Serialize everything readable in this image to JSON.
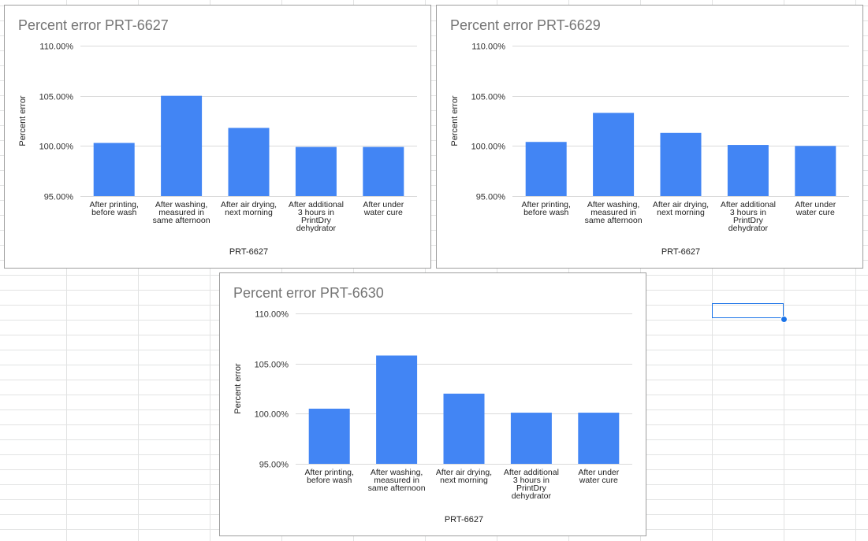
{
  "colors": {
    "bar": "#4285f4",
    "title": "#757575",
    "grid": "#dadada",
    "selection": "#1a73e8"
  },
  "chart_data": [
    {
      "type": "bar",
      "title": "Percent error PRT-6627",
      "xlabel": "PRT-6627",
      "ylabel": "Percent error",
      "ylim": [
        0.95,
        1.1
      ],
      "yticks": [
        "95.00%",
        "100.00%",
        "105.00%",
        "110.00%"
      ],
      "categories": [
        [
          "After printing,",
          "before wash"
        ],
        [
          "After washing,",
          "measured in",
          "same afternoon"
        ],
        [
          "After air drying,",
          "next morning"
        ],
        [
          "After additional",
          "3 hours in",
          "PrintDry",
          "dehydrator"
        ],
        [
          "After under",
          "water cure"
        ]
      ],
      "values": [
        1.003,
        1.05,
        1.018,
        0.999,
        0.999
      ],
      "grid": true
    },
    {
      "type": "bar",
      "title": "Percent error PRT-6629",
      "xlabel": "PRT-6627",
      "ylabel": "Percent error",
      "ylim": [
        0.95,
        1.1
      ],
      "yticks": [
        "95.00%",
        "100.00%",
        "105.00%",
        "110.00%"
      ],
      "categories": [
        [
          "After printing,",
          "before wash"
        ],
        [
          "After washing,",
          "measured in",
          "same afternoon"
        ],
        [
          "After air drying,",
          "next morning"
        ],
        [
          "After additional",
          "3 hours in",
          "PrintDry",
          "dehydrator"
        ],
        [
          "After under",
          "water cure"
        ]
      ],
      "values": [
        1.004,
        1.033,
        1.013,
        1.001,
        1.0
      ],
      "grid": true
    },
    {
      "type": "bar",
      "title": "Percent error PRT-6630",
      "xlabel": "PRT-6627",
      "ylabel": "Percent error",
      "ylim": [
        0.95,
        1.1
      ],
      "yticks": [
        "95.00%",
        "100.00%",
        "105.00%",
        "110.00%"
      ],
      "categories": [
        [
          "After printing,",
          "before wash"
        ],
        [
          "After washing,",
          "measured in",
          "same afternoon"
        ],
        [
          "After air drying,",
          "next morning"
        ],
        [
          "After additional",
          "3 hours in",
          "PrintDry",
          "dehydrator"
        ],
        [
          "After under",
          "water cure"
        ]
      ],
      "values": [
        1.005,
        1.058,
        1.02,
        1.001,
        1.001
      ],
      "grid": true
    }
  ]
}
